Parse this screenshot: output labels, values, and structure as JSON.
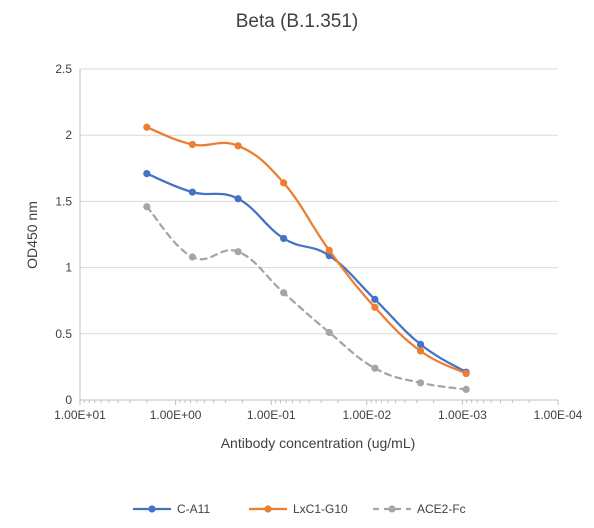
{
  "chart_data": {
    "type": "line",
    "title": "Beta (B.1.351)",
    "xlabel": "Antibody concentration (ug/mL)",
    "ylabel": "OD450 nm",
    "x_scale": "log",
    "x_reversed": true,
    "xlim": [
      10,
      0.0001
    ],
    "ylim": [
      0,
      2.5
    ],
    "x_ticks": [
      10,
      1,
      0.1,
      0.01,
      0.001,
      0.0001
    ],
    "x_tick_labels": [
      "1.00E+01",
      "1.00E+00",
      "1.00E-01",
      "1.00E-02",
      "1.00E-03",
      "1.00E-04"
    ],
    "y_ticks": [
      0,
      0.5,
      1,
      1.5,
      2,
      2.5
    ],
    "y_tick_labels": [
      "0",
      "0.5",
      "1",
      "1.5",
      "2",
      "2.5"
    ],
    "grid": "horizontal",
    "legend_position": "bottom",
    "x": [
      2,
      0.667,
      0.222,
      0.0741,
      0.0247,
      0.00823,
      0.00274,
      0.000914
    ],
    "series": [
      {
        "name": "C-A11",
        "color": "#4472C4",
        "dashed": false,
        "values": [
          1.71,
          1.57,
          1.52,
          1.22,
          1.09,
          0.76,
          0.42,
          0.21
        ]
      },
      {
        "name": "LxC1-G10",
        "color": "#ED7D31",
        "dashed": false,
        "values": [
          2.06,
          1.93,
          1.92,
          1.64,
          1.13,
          0.7,
          0.37,
          0.2
        ]
      },
      {
        "name": "ACE2-Fc",
        "color": "#A5A5A5",
        "dashed": true,
        "values": [
          1.46,
          1.08,
          1.12,
          0.81,
          0.51,
          0.24,
          0.13,
          0.08
        ]
      }
    ]
  }
}
